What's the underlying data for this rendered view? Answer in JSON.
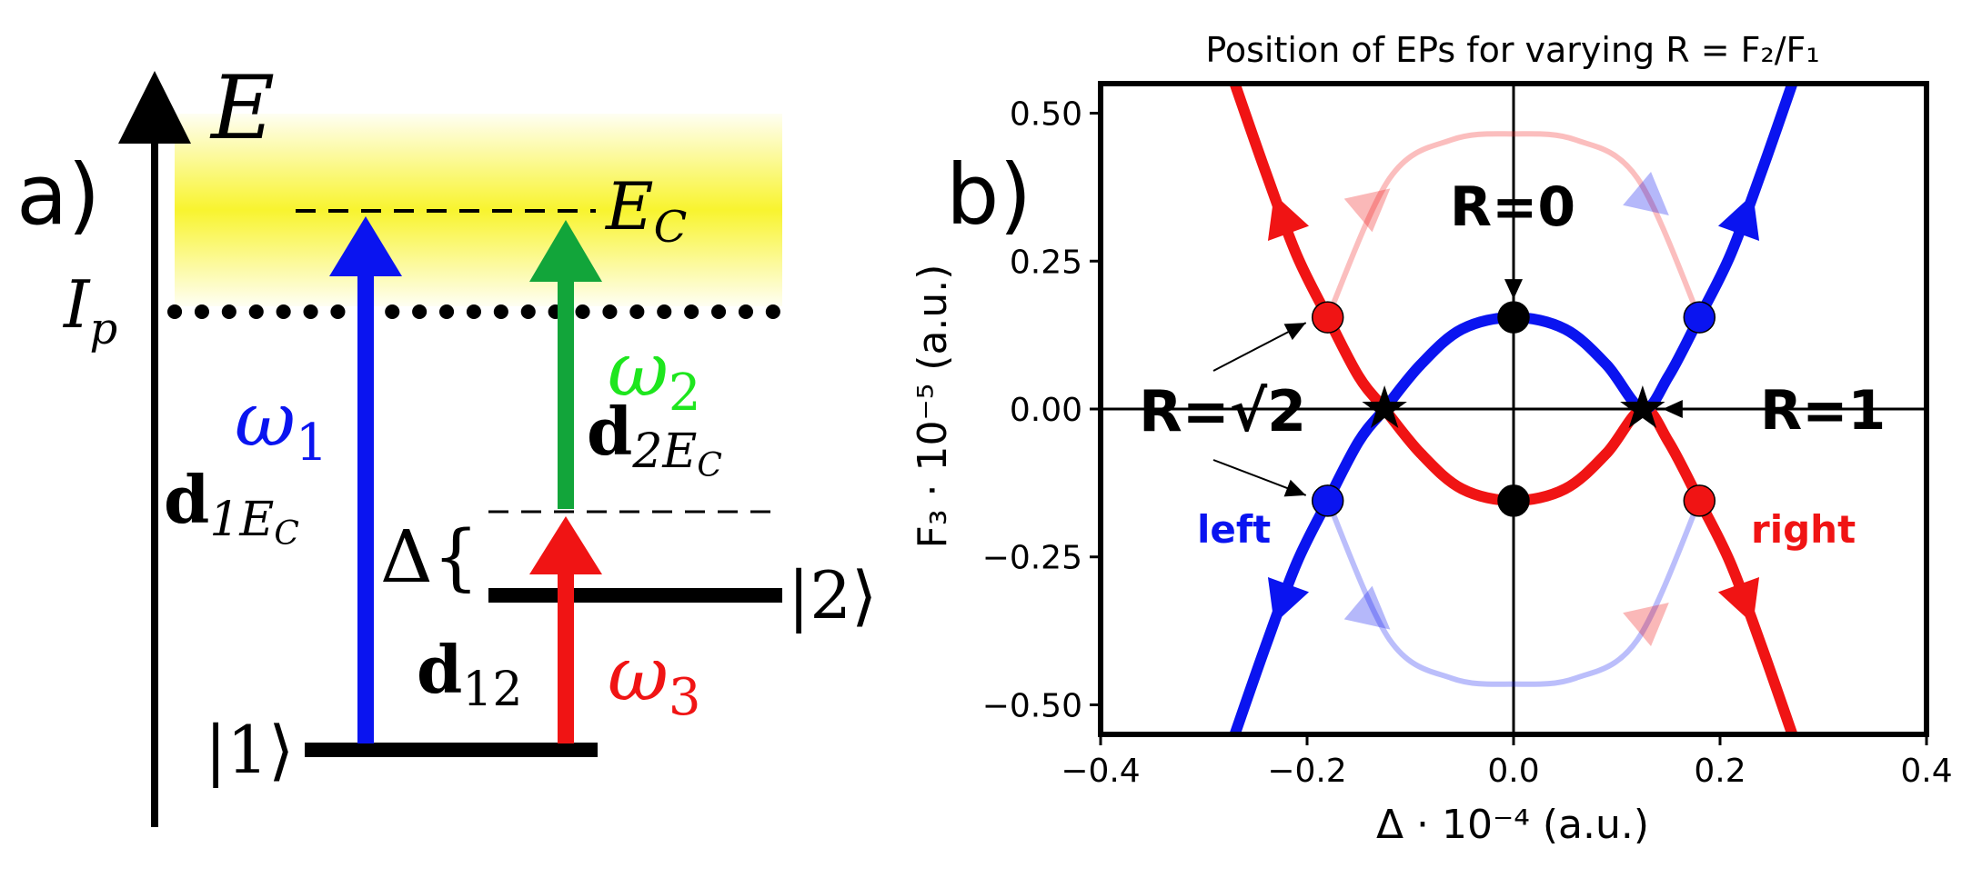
{
  "panel_a": {
    "panel_label": "a)",
    "energy_axis_label": "E",
    "continuum_label": "E",
    "continuum_label_sub": "C",
    "ionization_label": "I",
    "ionization_label_sub": "p",
    "state1_label": "|1⟩",
    "state2_label": "|2⟩",
    "detuning_label": "Δ{",
    "omega1": {
      "base": "ω",
      "sub": "1"
    },
    "omega2": {
      "base": "ω",
      "sub": "2"
    },
    "omega3": {
      "base": "ω",
      "sub": "3"
    },
    "d1EC": {
      "base": "d",
      "sub": "1E",
      "subsub": "C"
    },
    "d2EC": {
      "base": "d",
      "sub": "2E",
      "subsub": "C"
    },
    "d12": {
      "base": "d",
      "sub": "12"
    },
    "colors": {
      "omega1": "#0a14f0",
      "omega2": "#1ee61e",
      "omega3": "#f01414",
      "arrow_green": "#12a53a",
      "continuum": "#f7f20a"
    }
  },
  "panel_b": {
    "panel_label": "b)",
    "title": "Position of EPs for varying R = F₂/F₁",
    "xlabel": "Δ · 10⁻⁴ (a.u.)",
    "ylabel": "F₃ · 10⁻⁵ (a.u.)",
    "annotations": {
      "r0": "R=0",
      "r1": "R=1",
      "rsqrt2": "R=√2",
      "left": "left",
      "right": "right"
    },
    "colors": {
      "left": "#0a14f0",
      "right": "#f01414"
    }
  },
  "chart_data": {
    "type": "line",
    "title": "Position of EPs for varying R = F₂/F₁",
    "xlabel": "Δ · 10⁻⁴ (a.u.)",
    "ylabel": "F₃ · 10⁻⁵ (a.u.)",
    "xlim": [
      -0.4,
      0.4
    ],
    "ylim": [
      -0.55,
      0.55
    ],
    "xticks": [
      "−0.4",
      "−0.2",
      "0.0",
      "0.2",
      "0.4"
    ],
    "yticks": [
      "0.50",
      "0.25",
      "0.00",
      "−0.25",
      "−0.50"
    ],
    "xtick_values": [
      -0.4,
      -0.2,
      0.0,
      0.2,
      0.4
    ],
    "ytick_values": [
      0.5,
      0.25,
      0.0,
      -0.25,
      -0.5
    ],
    "series": [
      {
        "color": "#f01414",
        "x": [
          -0.27,
          -0.24,
          -0.21,
          -0.18,
          -0.15,
          -0.125,
          -0.09,
          -0.05,
          0.0,
          0.05,
          0.09,
          0.125,
          0.15,
          0.18,
          0.21,
          0.24,
          0.27
        ],
        "y": [
          0.55,
          0.4,
          0.26,
          0.155,
          0.055,
          0.0,
          -0.075,
          -0.135,
          -0.155,
          -0.135,
          -0.075,
          0.0,
          -0.055,
          -0.155,
          -0.26,
          -0.4,
          -0.55
        ]
      },
      {
        "color": "#0a14f0",
        "x": [
          -0.27,
          -0.24,
          -0.21,
          -0.18,
          -0.15,
          -0.125,
          -0.09,
          -0.05,
          0.0,
          0.05,
          0.09,
          0.125,
          0.15,
          0.18,
          0.21,
          0.24,
          0.27
        ],
        "y": [
          -0.55,
          -0.4,
          -0.26,
          -0.155,
          -0.055,
          0.0,
          0.075,
          0.135,
          0.155,
          0.135,
          0.075,
          0.0,
          0.055,
          0.155,
          0.26,
          0.4,
          0.55
        ]
      },
      {
        "color": "#f01414",
        "x": [
          -0.18,
          -0.12,
          -0.06,
          0.0,
          0.06,
          0.12,
          0.18
        ],
        "y": [
          0.155,
          0.39,
          0.455,
          0.465,
          0.455,
          0.39,
          0.155
        ]
      },
      {
        "color": "#0a14f0",
        "x": [
          -0.18,
          -0.12,
          -0.06,
          0.0,
          0.06,
          0.12,
          0.18
        ],
        "y": [
          -0.155,
          -0.39,
          -0.455,
          -0.465,
          -0.455,
          -0.39,
          -0.155
        ]
      }
    ],
    "points": [
      {
        "x": -0.18,
        "y": 0.155,
        "color": "#f01414"
      },
      {
        "x": 0.18,
        "y": 0.155,
        "color": "#0a14f0"
      },
      {
        "x": -0.18,
        "y": -0.155,
        "color": "#0a14f0"
      },
      {
        "x": 0.18,
        "y": -0.155,
        "color": "#f01414"
      },
      {
        "x": 0.0,
        "y": 0.155,
        "color": "#000000"
      },
      {
        "x": 0.0,
        "y": -0.155,
        "color": "#000000"
      }
    ],
    "stars": [
      {
        "x": -0.125,
        "y": 0.0
      },
      {
        "x": 0.125,
        "y": 0.0
      }
    ]
  }
}
